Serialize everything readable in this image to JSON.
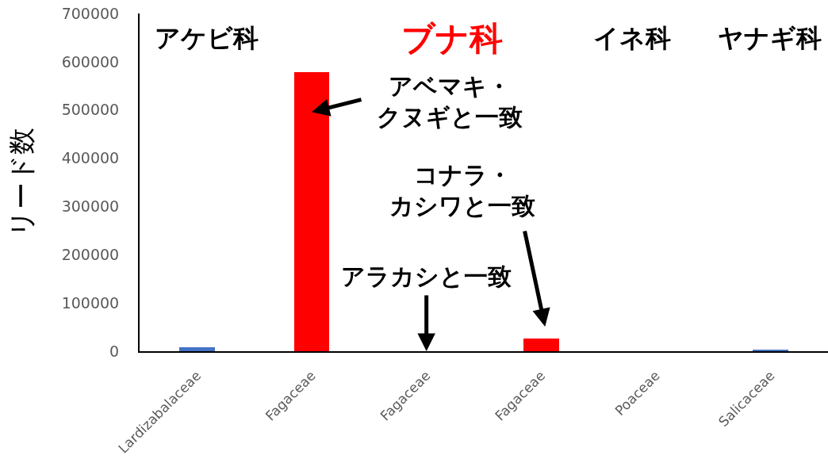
{
  "chart_data": {
    "type": "bar",
    "ylabel": "リード数",
    "categories": [
      "Lardizabalaceae",
      "Fagaceae",
      "Fagaceae",
      "Fagaceae",
      "Poaceae",
      "Salicaceae"
    ],
    "values": [
      8000,
      578000,
      0,
      27000,
      0,
      3000
    ],
    "colors": [
      "#4472c4",
      "#ff0000",
      "#ff0000",
      "#ff0000",
      "#4472c4",
      "#4472c4"
    ],
    "ylim": [
      0,
      700000
    ],
    "yticks": [
      0,
      100000,
      200000,
      300000,
      400000,
      500000,
      600000,
      700000
    ],
    "annotations": [
      "アケビ科",
      "ブナ科",
      "イネ科",
      "ヤナギ科",
      {
        "text": "アベマキ・クヌギと一致",
        "x": "Fagaceae",
        "y": 578000
      },
      {
        "text": "アラカシと一致",
        "x": "Fagaceae",
        "y": 0
      },
      "コナラ・カシワと一致"
    ]
  }
}
